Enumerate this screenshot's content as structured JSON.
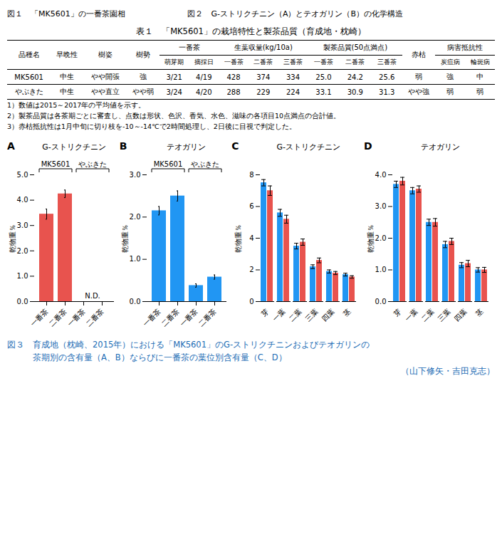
{
  "chart_data": [
    {
      "type": "caption",
      "texts": [
        "図１　「MK5601」の一番茶園相",
        "図２　G-ストリクチニン（A）とテオガリン（B）の化学構造"
      ]
    },
    {
      "type": "table",
      "title": "表１　「MK5601」の栽培特性と製茶品質（育成地・枕崎）",
      "columns": [
        {
          "label": "品種名"
        },
        {
          "label": "早晩性"
        },
        {
          "label": "樹姿"
        },
        {
          "label": "樹勢"
        },
        {
          "label": "一番茶",
          "sub": [
            "萌芽期",
            "摘採日"
          ]
        },
        {
          "label": "生葉収量(kg/10a)",
          "sub": [
            "一番茶",
            "二番茶",
            "三番茶"
          ]
        },
        {
          "label": "製茶品質(50点満点)",
          "sub": [
            "一番茶",
            "二番茶",
            "三番茶"
          ]
        },
        {
          "label": "赤枯"
        },
        {
          "label": "病害抵抗性",
          "sub": [
            "炭疽病",
            "輪斑病"
          ]
        }
      ],
      "rows": [
        [
          "MK5601",
          "中生",
          "やや開張",
          "強",
          "3/21",
          "4/19",
          "428",
          "374",
          "334",
          "25.0",
          "24.2",
          "25.6",
          "弱",
          "強",
          "中"
        ],
        [
          "やぶきた",
          "中生",
          "やや直立",
          "やや弱",
          "3/24",
          "4/20",
          "288",
          "229",
          "224",
          "33.1",
          "30.9",
          "31.3",
          "やや強",
          "弱",
          "弱"
        ]
      ],
      "footnotes": [
        "1）数値は2015～2017年の平均値を示す。",
        "2）製茶品質は各茶期ごとに審査し、点数は形状、色沢、香気、水色、滋味の各項目10点満点の合計値。",
        "3）赤枯抵抗性は1月中旬に切り枝を-10～-14℃で2時間処理し、2日後に目視で判定した。"
      ]
    },
    {
      "type": "bar",
      "label": "A",
      "title": "G-ストリクチニン",
      "ylabel": "乾物重％",
      "categories": [
        "一番茶",
        "二番茶",
        "一番茶",
        "二番茶"
      ],
      "groups": [
        "MK5601",
        "やぶきた"
      ],
      "values": [
        3.45,
        4.25,
        0,
        0
      ],
      "errors": [
        0.2,
        0.15,
        0,
        0
      ],
      "color": "#e8534e",
      "ylim": [
        0,
        5
      ],
      "yticks": [
        0,
        1,
        2,
        3,
        4,
        5
      ],
      "annotations": [
        {
          "text": "N.D.",
          "group": "やぶきた"
        }
      ]
    },
    {
      "type": "bar",
      "label": "B",
      "title": "テオガリン",
      "ylabel": "乾物重％",
      "categories": [
        "一番茶",
        "二番茶",
        "一番茶",
        "二番茶"
      ],
      "groups": [
        "MK5601",
        "やぶきた"
      ],
      "values": [
        2.15,
        2.5,
        0.38,
        0.58
      ],
      "errors": [
        0.1,
        0.12,
        0.04,
        0.05
      ],
      "color": "#2196f3",
      "ylim": [
        0,
        3
      ],
      "yticks": [
        0,
        1,
        2,
        3
      ]
    },
    {
      "type": "bar",
      "label": "C",
      "title": "G-ストリクチニン",
      "ylabel": "乾物重％",
      "categories": [
        "芽",
        "一葉",
        "二葉",
        "三葉",
        "四葉",
        "茎"
      ],
      "series": [
        {
          "color": "#2196f3",
          "values": [
            7.5,
            5.6,
            3.5,
            2.2,
            1.9,
            1.7
          ],
          "errors": [
            0.2,
            0.22,
            0.18,
            0.12,
            0.1,
            0.09
          ]
        },
        {
          "color": "#e8534e",
          "values": [
            7.0,
            5.2,
            3.75,
            2.6,
            1.8,
            1.55
          ],
          "errors": [
            0.3,
            0.25,
            0.2,
            0.15,
            0.1,
            0.08
          ]
        }
      ],
      "ylim": [
        0,
        8
      ],
      "yticks": [
        0,
        2,
        4,
        6,
        8
      ]
    },
    {
      "type": "bar",
      "label": "D",
      "title": "テオガリン",
      "ylabel": "乾物重％",
      "categories": [
        "芽",
        "一葉",
        "二葉",
        "三葉",
        "四葉",
        "茎"
      ],
      "series": [
        {
          "color": "#2196f3",
          "values": [
            3.7,
            3.5,
            2.5,
            1.8,
            1.15,
            1.0
          ],
          "errors": [
            0.1,
            0.1,
            0.1,
            0.1,
            0.08,
            0.07
          ]
        },
        {
          "color": "#e8534e",
          "values": [
            3.8,
            3.55,
            2.5,
            1.9,
            1.2,
            1.0
          ],
          "errors": [
            0.12,
            0.1,
            0.12,
            0.1,
            0.1,
            0.08
          ]
        }
      ],
      "ylim": [
        0,
        4
      ],
      "yticks": [
        0,
        1,
        2,
        3,
        4
      ]
    },
    {
      "type": "caption",
      "color": "#1a6cb5",
      "texts": [
        "図３　育成地（枕崎、2015年）における「MK5601」のG-ストリクチニンおよびテオガリンの",
        "茶期別の含有量（A、B）ならびに一番茶の葉位別含有量（C、D）",
        "（山下修矢・吉田克志）"
      ]
    }
  ]
}
